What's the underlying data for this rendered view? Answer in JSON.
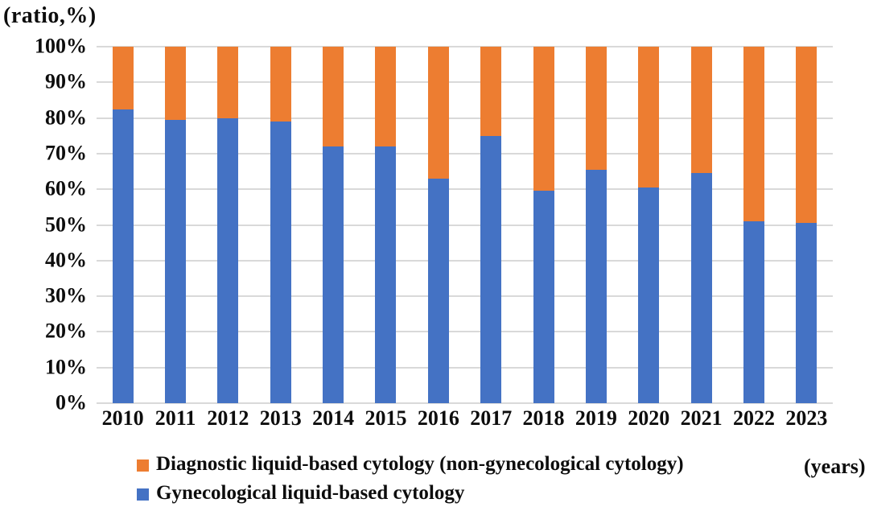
{
  "axis_label_y": "(ratio,%)",
  "axis_label_x": "(years)",
  "legend": [
    {
      "label": "Diagnostic liquid-based cytology (non-gynecological cytology)",
      "color": "#ED7D31"
    },
    {
      "label": "Gynecological liquid-based cytology",
      "color": "#4472C4"
    }
  ],
  "colors": {
    "blue": "#4472C4",
    "orange": "#ED7D31",
    "gridline": "#D9D9D9",
    "text": "#0D0D0D"
  },
  "chart_data": {
    "type": "bar",
    "stacked": true,
    "stack_total": 100,
    "title": "",
    "xlabel": "(years)",
    "ylabel": "(ratio,%)",
    "ylim": [
      0,
      100
    ],
    "ytick_step": 10,
    "ytick_labels": [
      "0%",
      "10%",
      "20%",
      "30%",
      "40%",
      "50%",
      "60%",
      "70%",
      "80%",
      "90%",
      "100%"
    ],
    "grid": true,
    "legend_position": "bottom",
    "categories": [
      "2010",
      "2011",
      "2012",
      "2013",
      "2014",
      "2015",
      "2016",
      "2017",
      "2018",
      "2019",
      "2020",
      "2021",
      "2022",
      "2023"
    ],
    "series": [
      {
        "name": "Gynecological liquid-based cytology",
        "color": "#4472C4",
        "values": [
          82.5,
          79.5,
          80,
          79,
          72,
          72,
          63,
          75,
          59.5,
          65.5,
          60.5,
          64.5,
          51,
          50.5
        ]
      },
      {
        "name": "Diagnostic liquid-based cytology (non-gynecological cytology)",
        "color": "#ED7D31",
        "values": [
          17.5,
          20.5,
          20,
          21,
          28,
          28,
          37,
          25,
          40.5,
          34.5,
          39.5,
          35.5,
          49,
          49.5
        ]
      }
    ]
  }
}
